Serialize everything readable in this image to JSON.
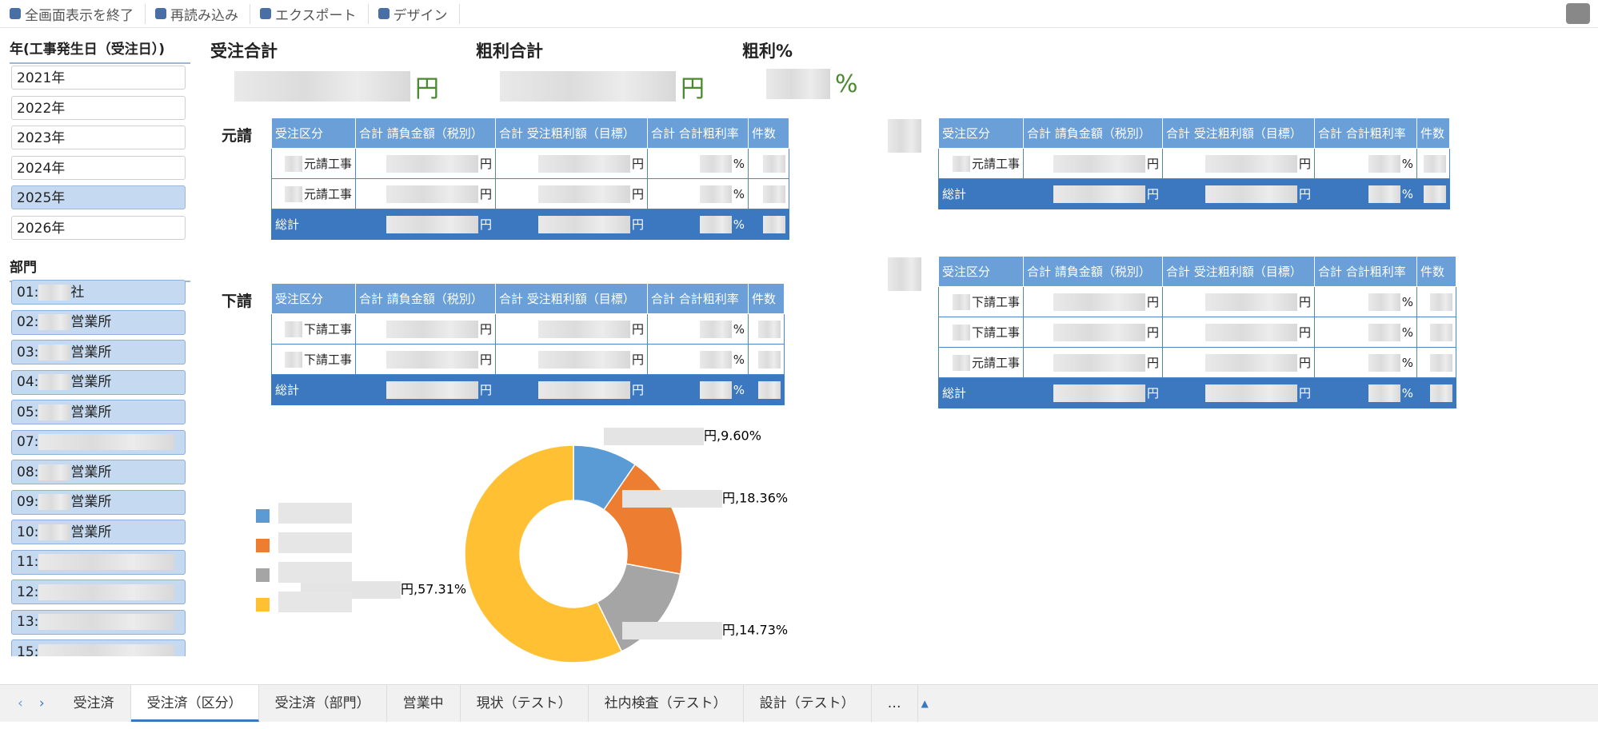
{
  "toolbar": [
    "全画面表示を終了",
    "再読み込み",
    "エクスポート",
    "デザイン"
  ],
  "filters": {
    "year_title": "年(工事発生日（受注日）)",
    "years": [
      {
        "label": "2021年",
        "selected": false
      },
      {
        "label": "2022年",
        "selected": false
      },
      {
        "label": "2023年",
        "selected": false
      },
      {
        "label": "2024年",
        "selected": false
      },
      {
        "label": "2025年",
        "selected": true
      },
      {
        "label": "2026年",
        "selected": false
      }
    ],
    "dept_title": "部門",
    "depts": [
      {
        "code": "01:",
        "name": "社"
      },
      {
        "code": "02:",
        "name": "営業所"
      },
      {
        "code": "03:",
        "name": "営業所"
      },
      {
        "code": "04:",
        "name": "営業所"
      },
      {
        "code": "05:",
        "name": "営業所"
      },
      {
        "code": "07:"
      },
      {
        "code": "08:",
        "name": "営業所"
      },
      {
        "code": "09:",
        "name": "営業所"
      },
      {
        "code": "10:",
        "name": "営業所"
      },
      {
        "code": "11:"
      },
      {
        "code": "12:"
      },
      {
        "code": "13:"
      },
      {
        "code": "15:"
      }
    ]
  },
  "kpis": [
    {
      "label": "受注合計",
      "unit": "円"
    },
    {
      "label": "粗利合計",
      "unit": "円"
    },
    {
      "label": "粗利%",
      "unit": "%"
    }
  ],
  "table_headers": [
    "受注区分",
    "合計 請負金額（税別）",
    "合計 受注粗利額（目標）",
    "合計 合計粗利率",
    "件数"
  ],
  "table_units": [
    "円",
    "円",
    "%"
  ],
  "tables": [
    {
      "section": "元請",
      "rows": [
        "元請工事",
        "元請工事"
      ],
      "total": "総計"
    },
    {
      "section": "下請",
      "rows": [
        "下請工事",
        "下請工事"
      ],
      "total": "総計"
    },
    {
      "rows": [
        "元請工事"
      ],
      "total": "総計"
    },
    {
      "rows": [
        "下請工事",
        "下請工事",
        "元請工事"
      ],
      "total": "総計"
    }
  ],
  "chart_data": {
    "type": "pie",
    "values": [
      9.6,
      18.36,
      14.73,
      57.31
    ],
    "value_labels": [
      "円,9.60%",
      "円,18.36%",
      "円,14.73%",
      "円,57.31%"
    ],
    "colors": [
      "#5b9bd5",
      "#ed7d31",
      "#a5a5a5",
      "#ffc133"
    ]
  },
  "tabs": [
    {
      "label": "受注済",
      "active": false
    },
    {
      "label": "受注済（区分）",
      "active": true
    },
    {
      "label": "受注済（部門）",
      "active": false
    },
    {
      "label": "営業中",
      "active": false
    },
    {
      "label": "現状（テスト）",
      "active": false
    },
    {
      "label": "社内検査（テスト）",
      "active": false
    },
    {
      "label": "設計（テスト）",
      "active": false
    },
    {
      "label": "…",
      "active": false
    }
  ]
}
